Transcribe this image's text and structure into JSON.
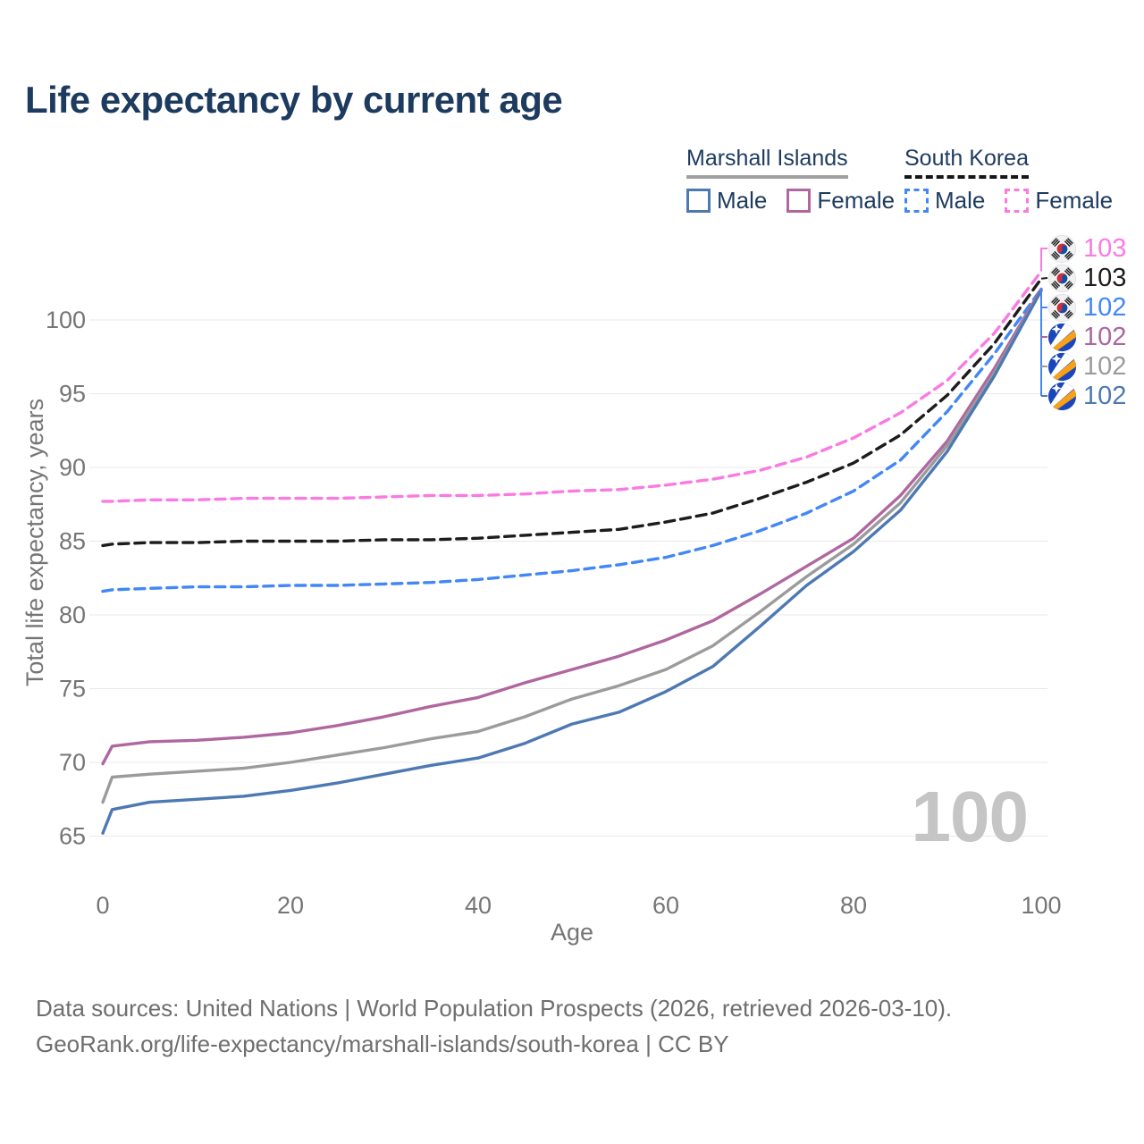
{
  "title": "Life expectancy by current age",
  "legend": {
    "groups": [
      {
        "label": "Marshall Islands",
        "style": "solid",
        "items": [
          {
            "label": "Male"
          },
          {
            "label": "Female"
          }
        ]
      },
      {
        "label": "South Korea",
        "style": "dashed",
        "items": [
          {
            "label": "Male"
          },
          {
            "label": "Female"
          }
        ]
      }
    ]
  },
  "colors": {
    "mi_male": "#4d79b3",
    "mi_female": "#b0679f",
    "mi_total": "#9b9b9b",
    "sk_male": "#4287f5",
    "sk_female": "#fb7ae1",
    "sk_total": "#1c1c1c",
    "title_text": "#1d3a5f",
    "axis_text": "#757575",
    "grid": "#e9e9e9",
    "watermark_text": "#c5c5c5"
  },
  "chart_data": {
    "type": "line",
    "title": "Life expectancy by current age",
    "xlabel": "Age",
    "ylabel": "Total life expectancy, years",
    "xlim": [
      0,
      100
    ],
    "ylim": [
      63.5,
      104.5
    ],
    "xticks": [
      0,
      20,
      40,
      60,
      80,
      100
    ],
    "yticks": [
      65,
      70,
      75,
      80,
      85,
      90,
      95,
      100
    ],
    "grid": "horizontal",
    "legend_position": "top-right",
    "x": [
      0,
      1,
      5,
      10,
      15,
      20,
      25,
      30,
      35,
      40,
      45,
      50,
      55,
      60,
      65,
      70,
      75,
      80,
      85,
      90,
      95,
      100
    ],
    "series": [
      {
        "key": "sk_female",
        "name": "South Korea Female",
        "dash": "dashed",
        "color": "#fb7ae1",
        "values": [
          87.7,
          87.7,
          87.8,
          87.8,
          87.9,
          87.9,
          87.9,
          88.0,
          88.1,
          88.1,
          88.2,
          88.4,
          88.5,
          88.8,
          89.2,
          89.8,
          90.7,
          92.0,
          93.7,
          95.9,
          99.1,
          103.3
        ]
      },
      {
        "key": "sk_total",
        "name": "South Korea Total",
        "dash": "dashed",
        "color": "#1c1c1c",
        "values": [
          84.7,
          84.8,
          84.9,
          84.9,
          85.0,
          85.0,
          85.0,
          85.1,
          85.1,
          85.2,
          85.4,
          85.6,
          85.8,
          86.3,
          86.9,
          87.9,
          89.0,
          90.3,
          92.2,
          94.9,
          98.4,
          102.8
        ]
      },
      {
        "key": "sk_male",
        "name": "South Korea Male",
        "dash": "dashed",
        "color": "#4287f5",
        "values": [
          81.6,
          81.7,
          81.8,
          81.9,
          81.9,
          82.0,
          82.0,
          82.1,
          82.2,
          82.4,
          82.7,
          83.0,
          83.4,
          83.9,
          84.7,
          85.7,
          86.9,
          88.4,
          90.5,
          93.8,
          97.7,
          102.1
        ]
      },
      {
        "key": "mi_female",
        "name": "Marshall Islands Female",
        "dash": "solid",
        "color": "#b0679f",
        "values": [
          69.9,
          71.1,
          71.4,
          71.5,
          71.7,
          72.0,
          72.5,
          73.1,
          73.8,
          74.4,
          75.4,
          76.3,
          77.2,
          78.3,
          79.6,
          81.4,
          83.3,
          85.2,
          88.1,
          91.8,
          96.7,
          102.1
        ]
      },
      {
        "key": "mi_total",
        "name": "Marshall Islands Total",
        "dash": "solid",
        "color": "#9b9b9b",
        "values": [
          67.3,
          69.0,
          69.2,
          69.4,
          69.6,
          70.0,
          70.5,
          71.0,
          71.6,
          72.1,
          73.1,
          74.3,
          75.2,
          76.3,
          77.9,
          80.2,
          82.6,
          84.8,
          87.6,
          91.5,
          96.4,
          102.0
        ]
      },
      {
        "key": "mi_male",
        "name": "Marshall Islands Male",
        "dash": "solid",
        "color": "#4d79b3",
        "values": [
          65.2,
          66.8,
          67.3,
          67.5,
          67.7,
          68.1,
          68.6,
          69.2,
          69.8,
          70.3,
          71.3,
          72.6,
          73.4,
          74.8,
          76.5,
          79.2,
          82.0,
          84.3,
          87.1,
          91.1,
          96.2,
          102.0
        ]
      }
    ]
  },
  "end_labels": [
    {
      "value": "103",
      "flag": "south-korea",
      "color": "#fb7ae1"
    },
    {
      "value": "103",
      "flag": "south-korea",
      "color": "#1c1c1c"
    },
    {
      "value": "102",
      "flag": "south-korea",
      "color": "#4287f5"
    },
    {
      "value": "102",
      "flag": "marshall-islands",
      "color": "#a9679e"
    },
    {
      "value": "102",
      "flag": "marshall-islands",
      "color": "#9b9b9b"
    },
    {
      "value": "102",
      "flag": "marshall-islands",
      "color": "#4d79b3"
    }
  ],
  "watermark": "100",
  "footer": {
    "line1": "Data sources: United Nations | World Population Prospects (2026, retrieved 2026-03-10).",
    "line2": "GeoRank.org/life-expectancy/marshall-islands/south-korea | CC BY"
  }
}
